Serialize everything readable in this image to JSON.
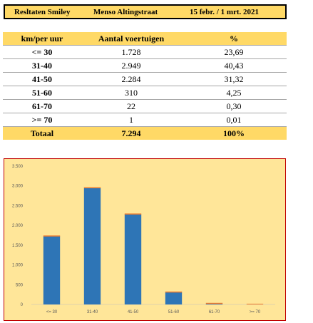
{
  "header": {
    "left": "Resltaten Smiley",
    "middle": "Menso Altingstraat",
    "right": "15 febr. / 1 mrt. 2021"
  },
  "table": {
    "columns": [
      "km/per uur",
      "Aantal voertuigen",
      "%"
    ],
    "rows": [
      {
        "range": "<= 30",
        "count": "1.728",
        "pct": "23,69"
      },
      {
        "range": "31-40",
        "count": "2.949",
        "pct": "40,43"
      },
      {
        "range": "41-50",
        "count": "2.284",
        "pct": "31,32"
      },
      {
        "range": "51-60",
        "count": "310",
        "pct": "4,25"
      },
      {
        "range": "61-70",
        "count": "22",
        "pct": "0,30"
      },
      {
        "range": ">= 70",
        "count": "1",
        "pct": "0,01"
      }
    ],
    "total": {
      "label": "Totaal",
      "count": "7.294",
      "pct": "100%"
    }
  },
  "chart_data": {
    "type": "bar",
    "categories": [
      "<= 30",
      "31-40",
      "41-50",
      "51-60",
      "61-70",
      ">= 70"
    ],
    "values": [
      1728,
      2949,
      2284,
      310,
      22,
      1
    ],
    "ylim": [
      0,
      3500
    ],
    "yticks": [
      0,
      500,
      1000,
      1500,
      2000,
      2500,
      3000,
      3500
    ],
    "ytick_labels": [
      "0",
      "500",
      "1.000",
      "1.500",
      "2.000",
      "2.500",
      "3.000",
      "3.500"
    ],
    "grid": false,
    "legend": "none",
    "colors": {
      "bar": "#2e75b6",
      "bar_top": "#ed7d31",
      "background": "#ffe699",
      "border": "#c00000"
    }
  }
}
